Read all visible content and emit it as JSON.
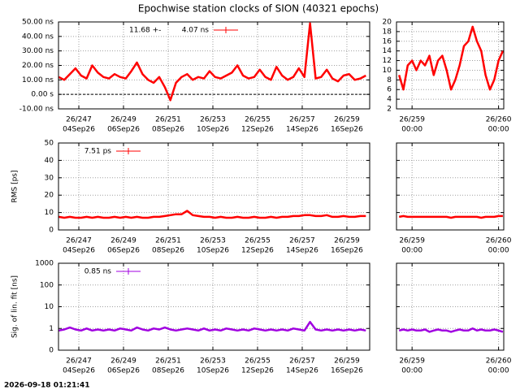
{
  "title": "Epochwise station clocks of SION (40321 epochs)",
  "timestamp": "2026-09-18 01:21:41",
  "chart_data": [
    {
      "type": "line",
      "annotation": "11.68 +-",
      "x": [
        246.1,
        246.35,
        246.6,
        246.85,
        247.1,
        247.35,
        247.6,
        247.85,
        248.1,
        248.35,
        248.6,
        248.85,
        249.1,
        249.35,
        249.6,
        249.85,
        250.1,
        250.35,
        250.6,
        250.85,
        251.1,
        251.35,
        251.6,
        251.85,
        252.1,
        252.35,
        252.6,
        252.85,
        253.1,
        253.35,
        253.6,
        253.85,
        254.1,
        254.35,
        254.6,
        254.85,
        255.1,
        255.35,
        255.6,
        255.85,
        256.1,
        256.35,
        256.6,
        256.85,
        257.1,
        257.35,
        257.6,
        257.85,
        258.1,
        258.35,
        258.6,
        258.85,
        259.1,
        259.35,
        259.6,
        259.85
      ],
      "series": [
        {
          "name": "4.07 ns",
          "color": "#ff0000",
          "values": [
            12,
            10,
            14,
            18,
            13,
            11,
            20,
            15,
            12,
            11,
            14,
            12,
            11,
            16,
            22,
            14,
            10,
            8,
            12,
            5,
            -4,
            8,
            12,
            14,
            10,
            12,
            11,
            16,
            12,
            11,
            13,
            15,
            20,
            13,
            11,
            12,
            17,
            12,
            10,
            19,
            13,
            10,
            12,
            18,
            12,
            49,
            11,
            12,
            17,
            11,
            9,
            13,
            14,
            10,
            11,
            13
          ]
        }
      ],
      "xlim": [
        246.09,
        260.02
      ],
      "xticks": [
        {
          "value": 247,
          "label": [
            "26/247",
            "04Sep26"
          ]
        },
        {
          "value": 249,
          "label": [
            "26/249",
            "06Sep26"
          ]
        },
        {
          "value": 251,
          "label": [
            "26/251",
            "08Sep26"
          ]
        },
        {
          "value": 253,
          "label": [
            "26/253",
            "10Sep26"
          ]
        },
        {
          "value": 255,
          "label": [
            "26/255",
            "12Sep26"
          ]
        },
        {
          "value": 257,
          "label": [
            "26/257",
            "14Sep26"
          ]
        },
        {
          "value": 259,
          "label": [
            "26/259",
            "16Sep26"
          ]
        }
      ],
      "ylim": [
        -10,
        50
      ],
      "yticks": [
        {
          "value": -10,
          "label": "-10.00 ns"
        },
        {
          "value": 0,
          "label": "0.00  s"
        },
        {
          "value": 10,
          "label": "10.00 ns"
        },
        {
          "value": 20,
          "label": "20.00 ns"
        },
        {
          "value": 30,
          "label": "30.00 ns"
        },
        {
          "value": 40,
          "label": "40.00 ns"
        },
        {
          "value": 50,
          "label": "50.00 ns"
        }
      ],
      "grid": true,
      "zeroline": true
    },
    {
      "type": "line",
      "x": [
        258.85,
        258.9,
        258.95,
        259.0,
        259.05,
        259.1,
        259.15,
        259.2,
        259.25,
        259.3,
        259.35,
        259.4,
        259.45,
        259.5,
        259.55,
        259.6,
        259.65,
        259.7,
        259.75,
        259.8,
        259.85,
        259.9,
        259.95,
        260.0,
        260.05
      ],
      "series": [
        {
          "color": "#ff0000",
          "values": [
            9,
            6,
            11,
            12,
            10,
            12,
            11,
            13,
            9,
            12,
            13,
            10,
            6,
            8,
            11,
            15,
            16,
            19,
            16,
            14,
            9,
            6,
            8,
            12,
            14
          ]
        }
      ],
      "xlim": [
        258.82,
        260.06
      ],
      "xticks": [
        {
          "value": 259,
          "label": [
            "26/259",
            "00:00"
          ]
        },
        {
          "value": 260,
          "label": [
            "26/260",
            "00:00"
          ]
        }
      ],
      "ylim": [
        2,
        20
      ],
      "yticks": [
        2,
        4,
        6,
        8,
        10,
        12,
        14,
        16,
        18,
        20
      ],
      "grid": true
    },
    {
      "type": "line",
      "ylabel": "RMS [ps]",
      "x": [
        246.1,
        246.35,
        246.6,
        246.85,
        247.1,
        247.35,
        247.6,
        247.85,
        248.1,
        248.35,
        248.6,
        248.85,
        249.1,
        249.35,
        249.6,
        249.85,
        250.1,
        250.35,
        250.6,
        250.85,
        251.1,
        251.35,
        251.6,
        251.85,
        252.1,
        252.35,
        252.6,
        252.85,
        253.1,
        253.35,
        253.6,
        253.85,
        254.1,
        254.35,
        254.6,
        254.85,
        255.1,
        255.35,
        255.6,
        255.85,
        256.1,
        256.35,
        256.6,
        256.85,
        257.1,
        257.35,
        257.6,
        257.85,
        258.1,
        258.35,
        258.6,
        258.85,
        259.1,
        259.35,
        259.6,
        259.85
      ],
      "series": [
        {
          "name": "7.51 ps",
          "color": "#ff0000",
          "values": [
            7.5,
            7,
            7.5,
            7,
            7,
            7.5,
            7,
            7.5,
            7,
            7,
            7.5,
            7,
            7.5,
            7,
            7.5,
            7,
            7,
            7.5,
            7.5,
            8,
            8.5,
            9,
            9,
            11,
            8.5,
            8,
            7.5,
            7.5,
            7,
            7.5,
            7,
            7,
            7.5,
            7,
            7,
            7.5,
            7,
            7,
            7.5,
            7,
            7.5,
            7.5,
            8,
            8,
            8.5,
            8.5,
            8,
            8,
            8.5,
            7.5,
            7.5,
            8,
            7.5,
            7.5,
            8,
            8
          ]
        }
      ],
      "xlim": [
        246.09,
        260.02
      ],
      "xticks": [
        {
          "value": 247,
          "label": [
            "26/247",
            "04Sep26"
          ]
        },
        {
          "value": 249,
          "label": [
            "26/249",
            "06Sep26"
          ]
        },
        {
          "value": 251,
          "label": [
            "26/251",
            "08Sep26"
          ]
        },
        {
          "value": 253,
          "label": [
            "26/253",
            "10Sep26"
          ]
        },
        {
          "value": 255,
          "label": [
            "26/255",
            "12Sep26"
          ]
        },
        {
          "value": 257,
          "label": [
            "26/257",
            "14Sep26"
          ]
        },
        {
          "value": 259,
          "label": [
            "26/259",
            "16Sep26"
          ]
        }
      ],
      "ylim": [
        0,
        50
      ],
      "yticks": [
        0,
        10,
        20,
        30,
        40,
        50
      ],
      "grid": true
    },
    {
      "type": "line",
      "x": [
        258.85,
        258.9,
        258.95,
        259.0,
        259.05,
        259.1,
        259.15,
        259.2,
        259.25,
        259.3,
        259.35,
        259.4,
        259.45,
        259.5,
        259.55,
        259.6,
        259.65,
        259.7,
        259.75,
        259.8,
        259.85,
        259.9,
        259.95,
        260.0,
        260.05
      ],
      "series": [
        {
          "color": "#ff0000",
          "values": [
            7.5,
            8,
            7.5,
            7.5,
            7.5,
            7.5,
            7.5,
            7.5,
            7.5,
            7.5,
            7.5,
            7.5,
            7,
            7.5,
            7.5,
            7.5,
            7.5,
            7.5,
            7.5,
            7,
            7.5,
            7.5,
            7.5,
            8,
            8
          ]
        }
      ],
      "xlim": [
        258.82,
        260.06
      ],
      "xticks": [
        {
          "value": 259,
          "label": [
            "26/259",
            "00:00"
          ]
        },
        {
          "value": 260,
          "label": [
            "26/260",
            "00:00"
          ]
        }
      ],
      "ylim": [
        0,
        50
      ],
      "yticks": [
        0,
        10,
        20,
        30,
        40,
        50
      ],
      "show_ytick_labels": false,
      "grid": true
    },
    {
      "type": "line",
      "ylabel": "Sig. of lin. fit [ns]",
      "log": true,
      "x": [
        246.1,
        246.35,
        246.6,
        246.85,
        247.1,
        247.35,
        247.6,
        247.85,
        248.1,
        248.35,
        248.6,
        248.85,
        249.1,
        249.35,
        249.6,
        249.85,
        250.1,
        250.35,
        250.6,
        250.85,
        251.1,
        251.35,
        251.6,
        251.85,
        252.1,
        252.35,
        252.6,
        252.85,
        253.1,
        253.35,
        253.6,
        253.85,
        254.1,
        254.35,
        254.6,
        254.85,
        255.1,
        255.35,
        255.6,
        255.85,
        256.1,
        256.35,
        256.6,
        256.85,
        257.1,
        257.35,
        257.6,
        257.85,
        258.1,
        258.35,
        258.6,
        258.85,
        259.1,
        259.35,
        259.6,
        259.85
      ],
      "series": [
        {
          "name": "0.85 ns",
          "color": "#a000e0",
          "values": [
            0.8,
            0.9,
            1.1,
            0.9,
            0.8,
            1.0,
            0.8,
            0.9,
            0.8,
            0.9,
            0.8,
            1.0,
            0.9,
            0.8,
            1.1,
            0.9,
            0.8,
            1.0,
            0.9,
            1.1,
            0.9,
            0.8,
            0.9,
            1.0,
            0.9,
            0.8,
            1.0,
            0.8,
            0.9,
            0.8,
            1.0,
            0.9,
            0.8,
            0.9,
            0.8,
            1.0,
            0.9,
            0.8,
            0.9,
            0.8,
            0.9,
            0.8,
            1.0,
            0.9,
            0.8,
            2.0,
            0.9,
            0.8,
            0.9,
            0.8,
            0.9,
            0.8,
            0.9,
            0.8,
            0.9,
            0.8
          ]
        }
      ],
      "xlim": [
        246.09,
        260.02
      ],
      "xticks": [
        {
          "value": 247,
          "label": [
            "26/247",
            "04Sep26"
          ]
        },
        {
          "value": 249,
          "label": [
            "26/249",
            "06Sep26"
          ]
        },
        {
          "value": 251,
          "label": [
            "26/251",
            "08Sep26"
          ]
        },
        {
          "value": 253,
          "label": [
            "26/253",
            "10Sep26"
          ]
        },
        {
          "value": 255,
          "label": [
            "26/255",
            "12Sep26"
          ]
        },
        {
          "value": 257,
          "label": [
            "26/257",
            "14Sep26"
          ]
        },
        {
          "value": 259,
          "label": [
            "26/259",
            "16Sep26"
          ]
        }
      ],
      "ylim": [
        0.1,
        1000
      ],
      "yticks": [
        {
          "value": 0.1,
          "label": "0"
        },
        1,
        10,
        100,
        1000
      ],
      "grid": true
    },
    {
      "type": "line",
      "log": true,
      "x": [
        258.85,
        258.9,
        258.95,
        259.0,
        259.05,
        259.1,
        259.15,
        259.2,
        259.25,
        259.3,
        259.35,
        259.4,
        259.45,
        259.5,
        259.55,
        259.6,
        259.65,
        259.7,
        259.75,
        259.8,
        259.85,
        259.9,
        259.95,
        260.0,
        260.05
      ],
      "series": [
        {
          "color": "#a000e0",
          "values": [
            0.8,
            0.9,
            0.8,
            0.9,
            0.8,
            0.8,
            0.9,
            0.7,
            0.8,
            0.9,
            0.8,
            0.8,
            0.7,
            0.8,
            0.9,
            0.8,
            0.8,
            1.0,
            0.8,
            0.9,
            0.8,
            0.8,
            0.9,
            0.8,
            0.7
          ]
        }
      ],
      "xlim": [
        258.82,
        260.06
      ],
      "xticks": [
        {
          "value": 259,
          "label": [
            "26/259",
            "00:00"
          ]
        },
        {
          "value": 260,
          "label": [
            "26/260",
            "00:00"
          ]
        }
      ],
      "ylim": [
        0.1,
        1000
      ],
      "yticks": [
        0.1,
        1,
        10,
        100,
        1000
      ],
      "show_ytick_labels": false,
      "grid": true
    }
  ]
}
